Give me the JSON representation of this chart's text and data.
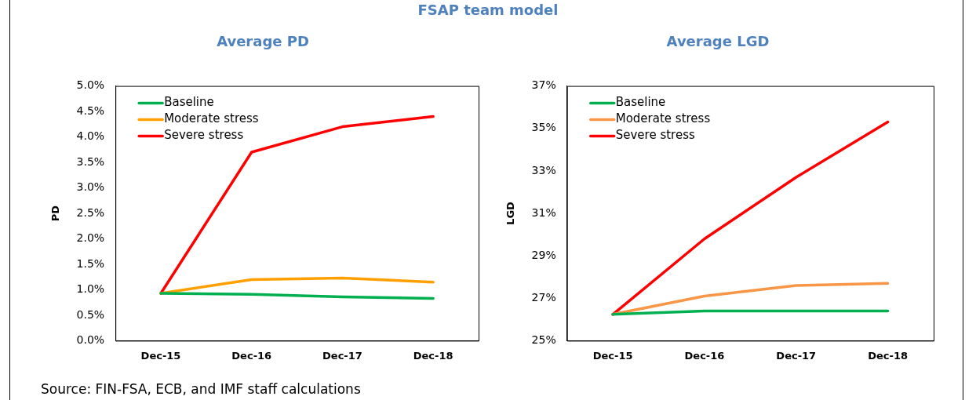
{
  "chart_data": [
    {
      "type": "line",
      "title": "Average PD",
      "ylabel": "PD",
      "categories": [
        "Dec-15",
        "Dec-16",
        "Dec-17",
        "Dec-18"
      ],
      "series": [
        {
          "name": "Baseline",
          "color": "#00b050",
          "values": [
            0.93,
            0.91,
            0.86,
            0.83
          ]
        },
        {
          "name": "Moderate stress",
          "color": "#ffa000",
          "values": [
            0.93,
            1.2,
            1.23,
            1.15
          ]
        },
        {
          "name": "Severe stress",
          "color": "#ff0000",
          "values": [
            0.93,
            3.7,
            4.2,
            4.4
          ]
        }
      ],
      "ylim": [
        0,
        5
      ],
      "yticks": [
        {
          "value": 0,
          "label": "0.0%"
        },
        {
          "value": 0.5,
          "label": "0.5%"
        },
        {
          "value": 1,
          "label": "1.0%"
        },
        {
          "value": 1.5,
          "label": "1.5%"
        },
        {
          "value": 2,
          "label": "2.0%"
        },
        {
          "value": 2.5,
          "label": "2.5%"
        },
        {
          "value": 3,
          "label": "3.0%"
        },
        {
          "value": 3.5,
          "label": "3.5%"
        },
        {
          "value": 4,
          "label": "4.0%"
        },
        {
          "value": 4.5,
          "label": "4.5%"
        },
        {
          "value": 5,
          "label": "5.0%"
        }
      ],
      "grid": false,
      "legend": "top left",
      "marker": "none",
      "line_style": "solid",
      "annotations": [
        "FSAP team model",
        "Source: FIN-FSA, ECB, and IMF staff calculations"
      ]
    },
    {
      "type": "line",
      "title": "Average LGD",
      "ylabel": "LGD",
      "categories": [
        "Dec-15",
        "Dec-16",
        "Dec-17",
        "Dec-18"
      ],
      "series": [
        {
          "name": "Baseline",
          "color": "#00b050",
          "values": [
            26.24,
            26.4,
            26.4,
            26.4
          ]
        },
        {
          "name": "Moderate stress",
          "color": "#f79646",
          "values": [
            26.24,
            27.1,
            27.6,
            27.7
          ]
        },
        {
          "name": "Severe stress",
          "color": "#ff0000",
          "values": [
            26.24,
            29.8,
            32.7,
            35.3
          ]
        }
      ],
      "ylim": [
        25,
        37
      ],
      "yticks": [
        {
          "value": 25,
          "label": "25%"
        },
        {
          "value": 27,
          "label": "27%"
        },
        {
          "value": 29,
          "label": "29%"
        },
        {
          "value": 31,
          "label": "31%"
        },
        {
          "value": 33,
          "label": "33%"
        },
        {
          "value": 35,
          "label": "35%"
        },
        {
          "value": 37,
          "label": "37%"
        }
      ],
      "grid": false,
      "legend": "top left",
      "marker": "none",
      "line_style": "solid"
    }
  ]
}
